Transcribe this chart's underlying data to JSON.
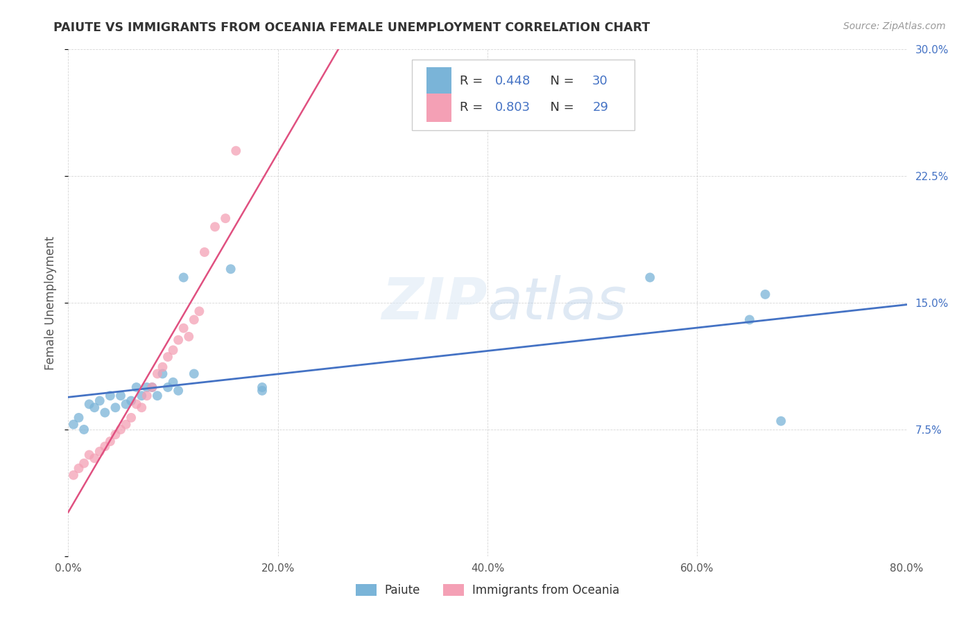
{
  "title": "PAIUTE VS IMMIGRANTS FROM OCEANIA FEMALE UNEMPLOYMENT CORRELATION CHART",
  "source": "Source: ZipAtlas.com",
  "ylabel": "Female Unemployment",
  "watermark_zip": "ZIP",
  "watermark_atlas": "atlas",
  "paiute_R": 0.448,
  "paiute_N": 30,
  "oceania_R": 0.803,
  "oceania_N": 29,
  "paiute_color": "#7ab4d8",
  "oceania_color": "#f4a0b5",
  "paiute_line_color": "#4472c4",
  "oceania_line_color": "#e05080",
  "xlim": [
    0.0,
    0.8
  ],
  "ylim": [
    0.0,
    0.3
  ],
  "xticks": [
    0.0,
    0.2,
    0.4,
    0.6,
    0.8
  ],
  "yticks": [
    0.0,
    0.075,
    0.15,
    0.225,
    0.3
  ],
  "xtick_labels": [
    "0.0%",
    "20.0%",
    "40.0%",
    "60.0%",
    "80.0%"
  ],
  "ytick_labels": [
    "",
    "7.5%",
    "15.0%",
    "22.5%",
    "30.0%"
  ],
  "legend_labels": [
    "Paiute",
    "Immigrants from Oceania"
  ],
  "paiute_x": [
    0.005,
    0.01,
    0.015,
    0.02,
    0.025,
    0.03,
    0.035,
    0.04,
    0.045,
    0.05,
    0.055,
    0.06,
    0.065,
    0.07,
    0.075,
    0.08,
    0.085,
    0.09,
    0.095,
    0.1,
    0.105,
    0.11,
    0.12,
    0.155,
    0.185,
    0.185,
    0.555,
    0.65,
    0.665,
    0.68
  ],
  "paiute_y": [
    0.078,
    0.082,
    0.075,
    0.09,
    0.088,
    0.092,
    0.085,
    0.095,
    0.088,
    0.095,
    0.09,
    0.092,
    0.1,
    0.095,
    0.1,
    0.1,
    0.095,
    0.108,
    0.1,
    0.103,
    0.098,
    0.165,
    0.108,
    0.17,
    0.098,
    0.1,
    0.165,
    0.14,
    0.155,
    0.08
  ],
  "oceania_x": [
    0.005,
    0.01,
    0.015,
    0.02,
    0.025,
    0.03,
    0.035,
    0.04,
    0.045,
    0.05,
    0.055,
    0.06,
    0.065,
    0.07,
    0.075,
    0.08,
    0.085,
    0.09,
    0.095,
    0.1,
    0.105,
    0.11,
    0.115,
    0.12,
    0.125,
    0.13,
    0.14,
    0.15,
    0.16
  ],
  "oceania_y": [
    0.048,
    0.052,
    0.055,
    0.06,
    0.058,
    0.062,
    0.065,
    0.068,
    0.072,
    0.075,
    0.078,
    0.082,
    0.09,
    0.088,
    0.095,
    0.1,
    0.108,
    0.112,
    0.118,
    0.122,
    0.128,
    0.135,
    0.13,
    0.14,
    0.145,
    0.18,
    0.195,
    0.2,
    0.24
  ]
}
